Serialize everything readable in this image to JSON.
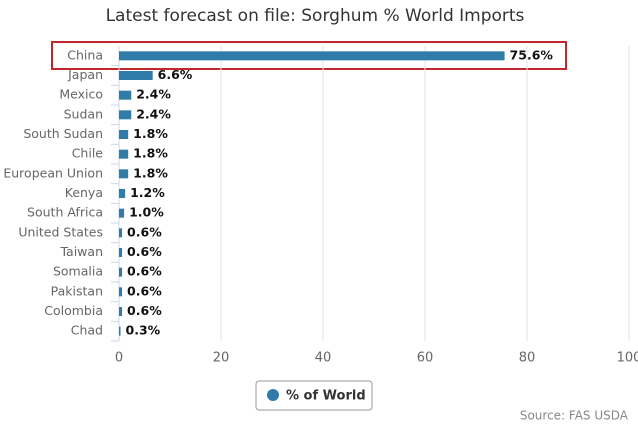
{
  "chart_data": {
    "type": "bar",
    "orientation": "horizontal",
    "title": "Latest forecast on file: Sorghum % World Imports",
    "categories": [
      "China",
      "Japan",
      "Mexico",
      "Sudan",
      "South Sudan",
      "Chile",
      "European Union",
      "Kenya",
      "South Africa",
      "United States",
      "Taiwan",
      "Somalia",
      "Pakistan",
      "Colombia",
      "Chad"
    ],
    "series": [
      {
        "name": "% of World",
        "color": "#2f7ca8",
        "values": [
          75.6,
          6.6,
          2.4,
          2.4,
          1.8,
          1.8,
          1.8,
          1.2,
          1.0,
          0.6,
          0.6,
          0.6,
          0.6,
          0.6,
          0.3
        ],
        "value_labels": [
          "75.6%",
          "6.6%",
          "2.4%",
          "2.4%",
          "1.8%",
          "1.8%",
          "1.8%",
          "1.2%",
          "1.0%",
          "0.6%",
          "0.6%",
          "0.6%",
          "0.6%",
          "0.6%",
          "0.3%"
        ]
      }
    ],
    "xlim": [
      0,
      100
    ],
    "xticks": [
      0,
      20,
      40,
      60,
      80,
      100
    ],
    "grid": true,
    "legend": "bottom",
    "source": "Source: FAS USDA"
  }
}
